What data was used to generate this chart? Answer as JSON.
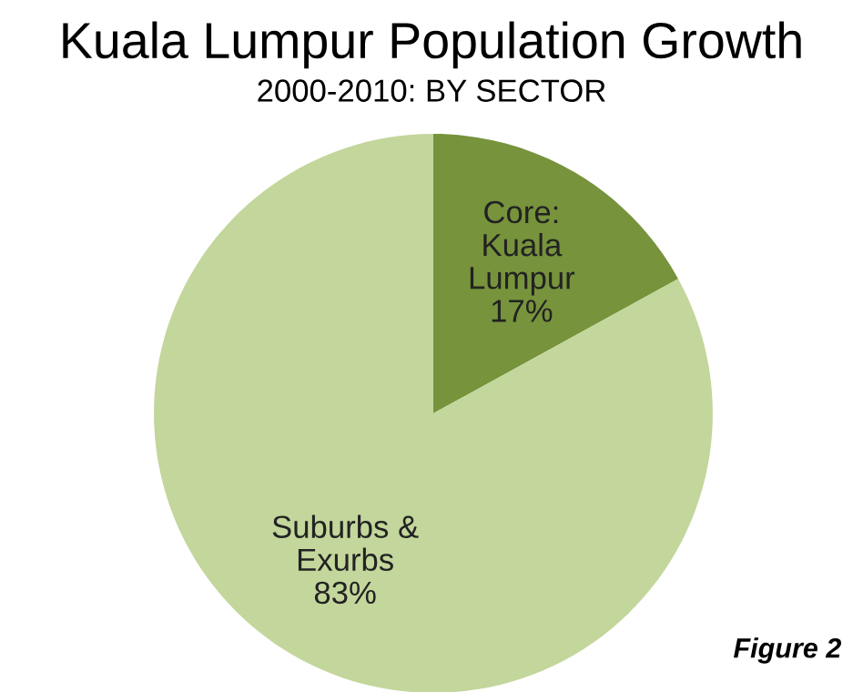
{
  "chart_data": {
    "type": "pie",
    "title": "Kuala Lumpur Population Growth",
    "subtitle": "2000-2010: BY SECTOR",
    "categories": [
      "Core:\nKuala\nLumpur",
      "Suburbs &\nExurbs"
    ],
    "values": [
      17,
      83
    ],
    "value_labels": [
      "17%",
      "83%"
    ],
    "colors": [
      "#77933c",
      "#c3d69b"
    ],
    "annotations": [
      "Figure 2"
    ],
    "legend": false
  }
}
